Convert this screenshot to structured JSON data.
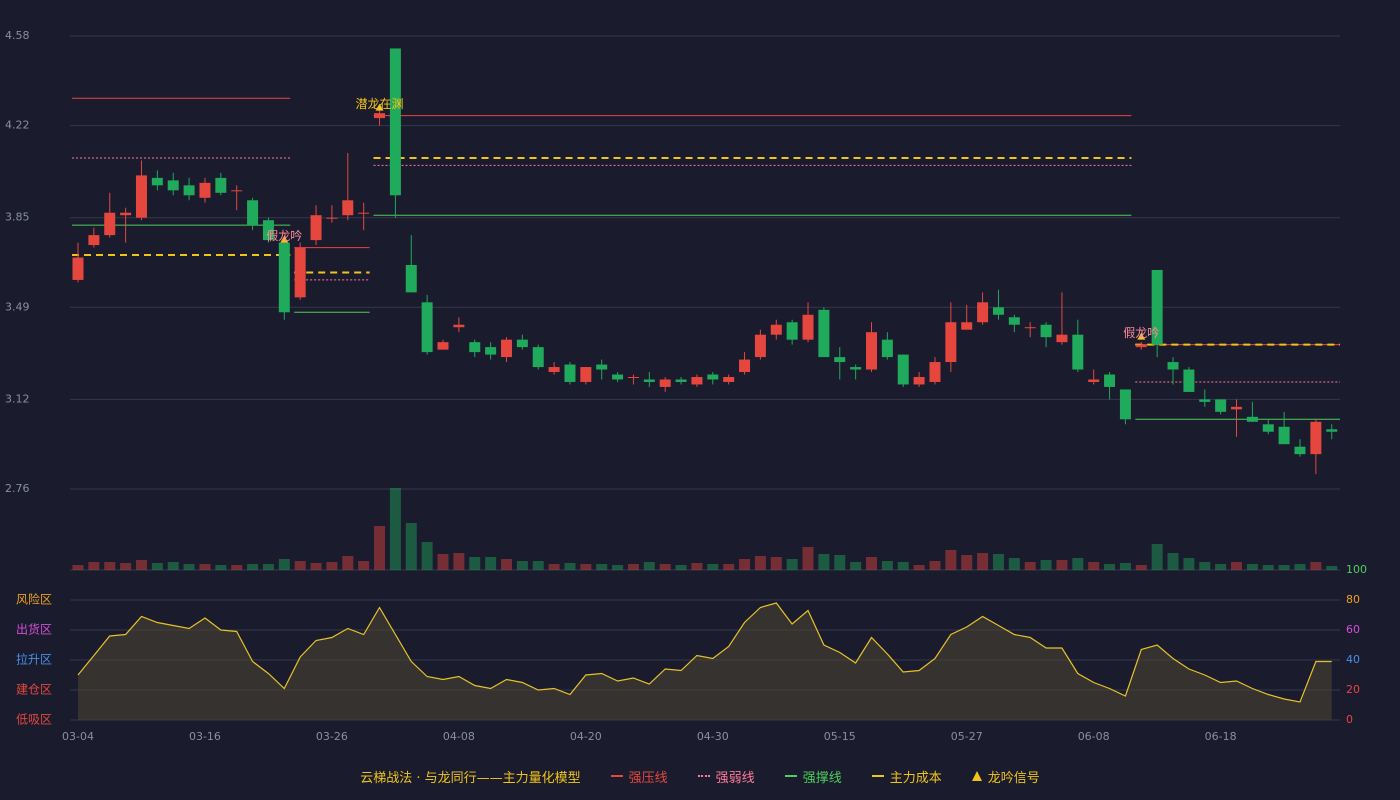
{
  "chart_data": {
    "type": "candlestick",
    "categories": [
      "03-04",
      null,
      null,
      null,
      null,
      null,
      null,
      null,
      "03-16",
      null,
      null,
      null,
      null,
      null,
      null,
      null,
      "03-26",
      null,
      null,
      null,
      null,
      null,
      null,
      null,
      "04-08",
      null,
      null,
      null,
      null,
      null,
      null,
      null,
      "04-20",
      null,
      null,
      null,
      null,
      null,
      null,
      null,
      "04-30",
      null,
      null,
      null,
      null,
      null,
      null,
      null,
      "05-15",
      null,
      null,
      null,
      null,
      null,
      null,
      null,
      "05-27",
      null,
      null,
      null,
      null,
      null,
      null,
      null,
      "06-08",
      null,
      null,
      null,
      null,
      null,
      null,
      null,
      "06-18",
      null,
      null,
      null,
      null,
      null,
      null,
      null
    ],
    "open": [
      3.6,
      3.74,
      3.78,
      3.86,
      3.85,
      4.01,
      4.0,
      3.98,
      3.93,
      4.01,
      3.96,
      3.92,
      3.84,
      3.75,
      3.53,
      3.76,
      3.85,
      3.86,
      3.87,
      4.25,
      4.53,
      3.66,
      3.51,
      3.32,
      3.41,
      3.35,
      3.33,
      3.29,
      3.36,
      3.33,
      3.23,
      3.26,
      3.19,
      3.26,
      3.22,
      3.21,
      3.2,
      3.17,
      3.2,
      3.18,
      3.22,
      3.19,
      3.23,
      3.29,
      3.38,
      3.43,
      3.36,
      3.48,
      3.29,
      3.25,
      3.24,
      3.36,
      3.3,
      3.18,
      3.19,
      3.27,
      3.4,
      3.43,
      3.49,
      3.45,
      3.41,
      3.42,
      3.35,
      3.38,
      3.19,
      3.22,
      3.16,
      3.33,
      3.64,
      3.27,
      3.24,
      3.12,
      3.12,
      3.08,
      3.05,
      3.02,
      3.01,
      2.93,
      2.9,
      3.0
    ],
    "high": [
      3.75,
      3.81,
      3.95,
      3.89,
      4.08,
      4.04,
      4.03,
      4.01,
      4.01,
      4.03,
      3.98,
      3.93,
      3.85,
      3.76,
      3.75,
      3.9,
      3.9,
      4.11,
      3.91,
      4.29,
      4.53,
      3.78,
      3.54,
      3.36,
      3.45,
      3.36,
      3.35,
      3.37,
      3.38,
      3.34,
      3.27,
      3.27,
      3.25,
      3.28,
      3.23,
      3.22,
      3.23,
      3.21,
      3.21,
      3.22,
      3.23,
      3.22,
      3.31,
      3.4,
      3.44,
      3.44,
      3.51,
      3.49,
      3.33,
      3.26,
      3.43,
      3.39,
      3.3,
      3.23,
      3.29,
      3.51,
      3.5,
      3.55,
      3.56,
      3.46,
      3.43,
      3.43,
      3.55,
      3.44,
      3.24,
      3.23,
      3.16,
      3.35,
      3.64,
      3.29,
      3.25,
      3.16,
      3.12,
      3.12,
      3.11,
      3.04,
      3.07,
      2.96,
      3.04,
      3.02
    ],
    "low": [
      3.59,
      3.73,
      3.77,
      3.75,
      3.84,
      3.96,
      3.94,
      3.92,
      3.91,
      3.94,
      3.88,
      3.8,
      3.75,
      3.44,
      3.52,
      3.74,
      3.83,
      3.84,
      3.8,
      4.22,
      3.85,
      3.55,
      3.3,
      3.32,
      3.39,
      3.29,
      3.28,
      3.27,
      3.32,
      3.24,
      3.22,
      3.18,
      3.18,
      3.2,
      3.19,
      3.18,
      3.17,
      3.15,
      3.18,
      3.17,
      3.18,
      3.18,
      3.22,
      3.28,
      3.36,
      3.34,
      3.35,
      3.29,
      3.2,
      3.2,
      3.23,
      3.28,
      3.17,
      3.17,
      3.18,
      3.23,
      3.4,
      3.42,
      3.44,
      3.39,
      3.37,
      3.33,
      3.34,
      3.23,
      3.18,
      3.12,
      3.02,
      3.32,
      3.29,
      3.18,
      3.15,
      3.09,
      3.06,
      2.97,
      3.03,
      2.98,
      2.94,
      2.89,
      2.82,
      2.96
    ],
    "close": [
      3.69,
      3.78,
      3.87,
      3.87,
      4.02,
      3.98,
      3.96,
      3.94,
      3.99,
      3.95,
      3.96,
      3.82,
      3.76,
      3.47,
      3.73,
      3.86,
      3.85,
      3.92,
      3.87,
      4.27,
      3.94,
      3.55,
      3.31,
      3.35,
      3.42,
      3.31,
      3.3,
      3.36,
      3.33,
      3.25,
      3.25,
      3.19,
      3.25,
      3.24,
      3.2,
      3.21,
      3.19,
      3.2,
      3.19,
      3.21,
      3.2,
      3.21,
      3.28,
      3.38,
      3.42,
      3.36,
      3.46,
      3.29,
      3.27,
      3.24,
      3.39,
      3.29,
      3.18,
      3.21,
      3.27,
      3.43,
      3.43,
      3.51,
      3.46,
      3.42,
      3.41,
      3.37,
      3.38,
      3.24,
      3.2,
      3.17,
      3.04,
      3.34,
      3.34,
      3.24,
      3.15,
      3.11,
      3.07,
      3.09,
      3.03,
      2.99,
      2.94,
      2.9,
      3.03,
      2.99
    ],
    "volume": [
      5,
      8,
      8,
      7,
      10,
      7,
      8,
      6,
      6,
      5,
      5,
      6,
      6,
      11,
      9,
      7,
      8,
      14,
      9,
      44,
      82,
      47,
      28,
      16,
      17,
      13,
      13,
      11,
      9,
      9,
      6,
      7,
      6,
      6,
      5,
      6,
      8,
      6,
      5,
      7,
      6,
      6,
      11,
      14,
      13,
      11,
      23,
      16,
      15,
      8,
      13,
      9,
      8,
      5,
      9,
      20,
      15,
      17,
      16,
      12,
      8,
      10,
      10,
      12,
      8,
      6,
      7,
      5,
      26,
      17,
      12,
      8,
      6,
      8,
      6,
      5,
      5,
      6,
      8,
      4
    ],
    "up_color": "#e5473f",
    "down_color": "#1faa5c",
    "ylim": [
      2.76,
      4.58
    ],
    "yticks": [
      2.76,
      3.12,
      3.49,
      3.85,
      4.22,
      4.58
    ],
    "grid": true,
    "levels": [
      {
        "name": "强压线",
        "color": "#e5473f",
        "dash": "solid",
        "segments": [
          {
            "from": 0,
            "to": 13,
            "value": 4.33
          },
          {
            "from": 14,
            "to": 18,
            "value": 3.73
          },
          {
            "from": 19,
            "to": 66,
            "value": 4.26
          },
          {
            "from": 67,
            "to": 79,
            "value": 3.34
          }
        ]
      },
      {
        "name": "强弱线",
        "color": "#ff7a9a",
        "dash": "dotted",
        "segments": [
          {
            "from": 0,
            "to": 13,
            "value": 4.09
          },
          {
            "from": 14,
            "to": 18,
            "value": 3.6
          },
          {
            "from": 19,
            "to": 66,
            "value": 4.06
          },
          {
            "from": 67,
            "to": 79,
            "value": 3.19
          }
        ]
      },
      {
        "name": "强撑线",
        "color": "#4ccf5c",
        "dash": "solid",
        "segments": [
          {
            "from": 0,
            "to": 13,
            "value": 3.82
          },
          {
            "from": 14,
            "to": 18,
            "value": 3.47
          },
          {
            "from": 19,
            "to": 66,
            "value": 3.86
          },
          {
            "from": 67,
            "to": 79,
            "value": 3.04
          }
        ]
      },
      {
        "name": "主力成本",
        "color": "#f0c419",
        "dash": "dashed",
        "segments": [
          {
            "from": 0,
            "to": 13,
            "value": 3.7
          },
          {
            "from": 14,
            "to": 18,
            "value": 3.63
          },
          {
            "from": 19,
            "to": 66,
            "value": 4.09
          },
          {
            "from": 67,
            "to": 79,
            "value": 3.34
          }
        ]
      }
    ],
    "signal_legend": {
      "name": "龙吟信号",
      "color": "#f0c419"
    },
    "signals": [
      {
        "index": 19,
        "label": "潜龙在渊",
        "value": 4.26,
        "color": "#f0c419"
      },
      {
        "index": 13,
        "label": "假龙吟",
        "value": 3.73,
        "color": "#ff8a9a"
      },
      {
        "index": 67,
        "label": "假龙吟",
        "value": 3.34,
        "color": "#ff8a9a"
      }
    ],
    "legend_title": "云梯战法 · 与龙同行——主力量化模型",
    "indicator": {
      "values": [
        30,
        43,
        56,
        57,
        69,
        65,
        63,
        61,
        68,
        60,
        59,
        39,
        31,
        21,
        42,
        53,
        55,
        61,
        57,
        75,
        57,
        39,
        29,
        27,
        29,
        23,
        21,
        27,
        25,
        20,
        21,
        17,
        30,
        31,
        26,
        28,
        24,
        34,
        33,
        43,
        41,
        49,
        65,
        75,
        78,
        64,
        73,
        50,
        45,
        38,
        55,
        44,
        32,
        33,
        41,
        57,
        62,
        69,
        63,
        57,
        55,
        48,
        48,
        31,
        25,
        21,
        16,
        47,
        50,
        41,
        34,
        30,
        25,
        26,
        21,
        17,
        14,
        12,
        39,
        39
      ],
      "color": "#e6c229",
      "ylim": [
        0,
        100
      ],
      "yticks": [
        0,
        20,
        40,
        60,
        80,
        100
      ],
      "ytick_colors": [
        "#e5473f",
        "#e5473f",
        "#4a90e2",
        "#d64fd6",
        "#f0a020",
        "#4ccf5c"
      ],
      "zones": [
        {
          "label": "风险区",
          "value": 80,
          "color": "#f0a020"
        },
        {
          "label": "出货区",
          "value": 60,
          "color": "#d64fd6"
        },
        {
          "label": "拉升区",
          "value": 40,
          "color": "#4a90e2"
        },
        {
          "label": "建仓区",
          "value": 20,
          "color": "#e5473f"
        },
        {
          "label": "低吸区",
          "value": 0,
          "color": "#e5473f"
        }
      ]
    }
  }
}
